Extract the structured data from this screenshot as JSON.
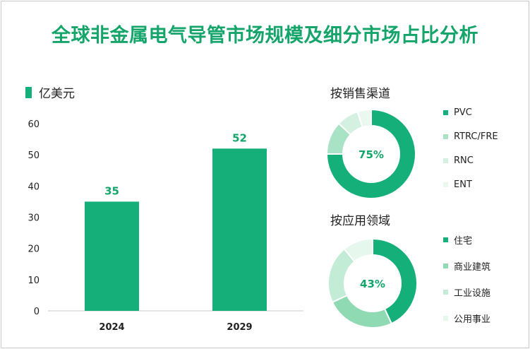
{
  "title": "全球非金属电气导管市场规模及细分市场占比分析",
  "chart_data": [
    {
      "type": "bar",
      "unit": "亿美元",
      "categories": [
        "2024",
        "2029"
      ],
      "values": [
        35,
        52
      ],
      "ylim": [
        0,
        60
      ],
      "yticks": [
        0,
        10,
        20,
        30,
        40,
        50,
        60
      ],
      "color": "#15b07a"
    },
    {
      "type": "pie",
      "title": "按销售渠道",
      "center_label": "75%",
      "labels": [
        "PVC",
        "RTRC/FRE",
        "RNC",
        "ENT"
      ],
      "values": [
        75,
        12,
        8,
        5
      ],
      "colors": [
        "#15b07a",
        "#a9e3c5",
        "#d3f0e1",
        "#eaf8f0"
      ]
    },
    {
      "type": "pie",
      "title": "按应用领域",
      "center_label": "43%",
      "labels": [
        "住宅",
        "商业建筑",
        "工业设施",
        "公用事业"
      ],
      "values": [
        43,
        25,
        21,
        11
      ],
      "colors": [
        "#15b07a",
        "#8fd9b3",
        "#c3ecd6",
        "#e6f7ee"
      ]
    }
  ]
}
